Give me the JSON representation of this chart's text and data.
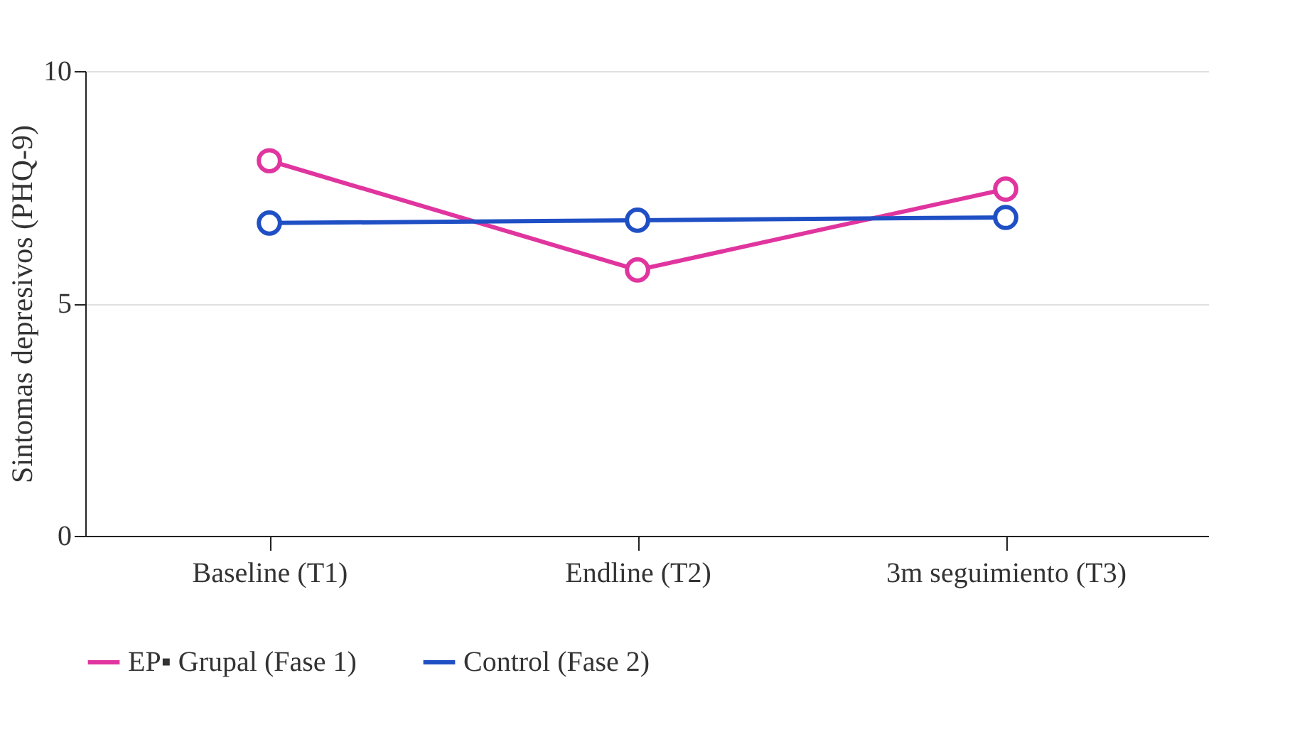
{
  "chart_data": {
    "type": "line",
    "ylabel": "Sintomas depresivos (PHQ-9)",
    "categories": [
      "Baseline (T1)",
      "Endline (T2)",
      "3m seguimiento (T3)"
    ],
    "series": [
      {
        "name": "EP▪ Grupal (Fase 1)",
        "color": "#e0359f",
        "values": [
          8.07,
          5.72,
          7.46
        ]
      },
      {
        "name": "Control (Fase 2)",
        "color": "#1f4fc4",
        "values": [
          6.73,
          6.79,
          6.85
        ]
      }
    ],
    "ylim": [
      0,
      10
    ],
    "yticks": [
      0,
      5,
      10
    ],
    "grid": "y",
    "legend": "bottom",
    "marker": "circle",
    "line_style": "solid"
  }
}
